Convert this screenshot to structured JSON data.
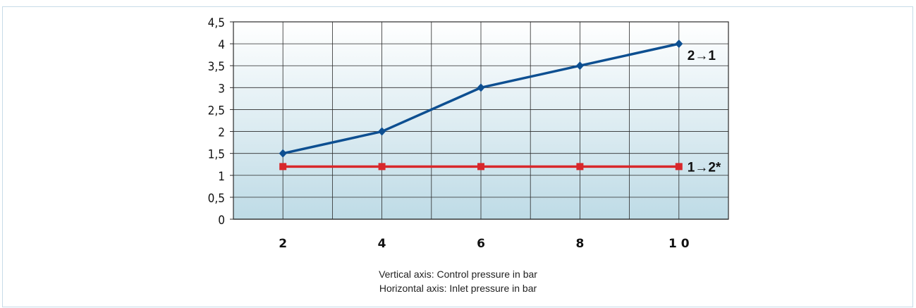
{
  "chart_data": {
    "type": "line",
    "x": [
      2,
      4,
      6,
      8,
      10
    ],
    "x_tick_labels": [
      "2",
      "4",
      "6",
      "8",
      "1 0"
    ],
    "y_ticks": [
      0,
      0.5,
      1,
      1.5,
      2,
      2.5,
      3,
      3.5,
      4,
      4.5
    ],
    "y_tick_labels": [
      "0",
      "0,5",
      "1",
      "1,5",
      "2",
      "2,5",
      "3",
      "3,5",
      "4",
      "4,5"
    ],
    "xlim": [
      1,
      11
    ],
    "ylim": [
      0,
      4.5
    ],
    "grid": true,
    "series": [
      {
        "name": "2→1",
        "values": [
          1.5,
          2,
          3,
          3.5,
          4
        ],
        "color": "#0d4f91",
        "marker": "diamond"
      },
      {
        "name": "1→2*",
        "values": [
          1.2,
          1.2,
          1.2,
          1.2,
          1.2
        ],
        "color": "#d8282b",
        "marker": "square"
      }
    ],
    "background_gradient": [
      "#ffffff",
      "#bedbe6"
    ],
    "captions": [
      "Vertical axis: Control pressure in  bar",
      "Horizontal axis: Inlet pressure in bar"
    ]
  }
}
